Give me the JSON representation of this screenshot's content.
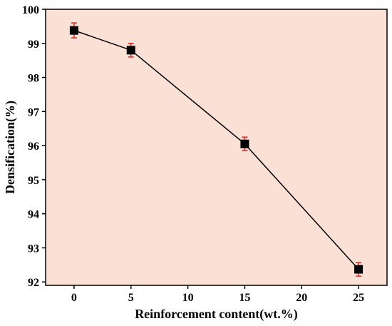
{
  "chart_data": {
    "type": "line",
    "x_scale": "linear",
    "xlabel": "Reinforcement content(wt.%)",
    "ylabel": "Densification(%)",
    "xlim": [
      -2.5,
      27.5
    ],
    "ylim": [
      91.9,
      100
    ],
    "xticks": [
      0,
      5,
      10,
      15,
      20,
      25
    ],
    "yticks": [
      92,
      93,
      94,
      95,
      96,
      97,
      98,
      99,
      100
    ],
    "series": [
      {
        "x": [
          0,
          5,
          15,
          25
        ],
        "y": [
          99.38,
          98.8,
          96.05,
          92.37
        ],
        "error": [
          0.22,
          0.2,
          0.2,
          0.2
        ],
        "marker": "square"
      }
    ],
    "grid": false,
    "legend": "none",
    "colors": {
      "plot_background": "#fbe0d6",
      "line": "#000000",
      "marker": "#000000",
      "error_bar": "#e8231e",
      "axis": "#000000"
    }
  }
}
